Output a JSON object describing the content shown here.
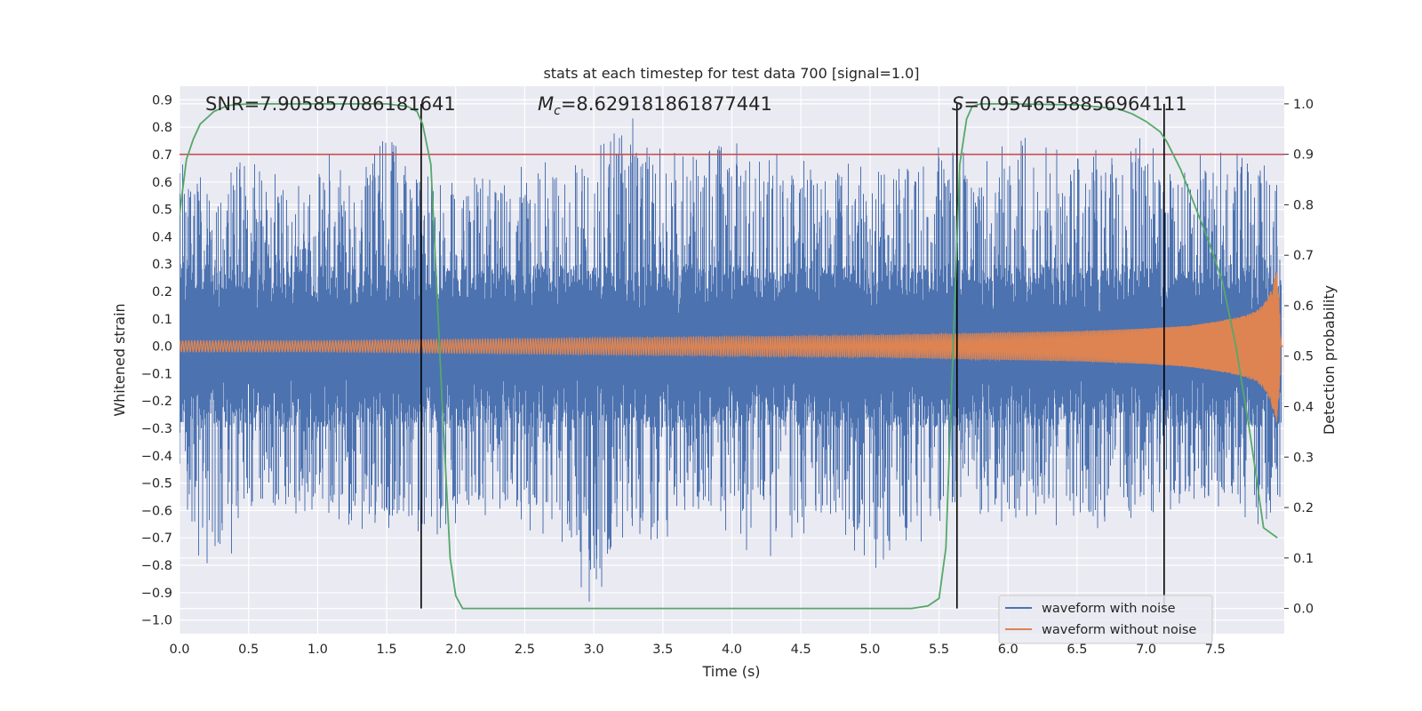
{
  "chart_data": {
    "type": "line",
    "title": "stats at each timestep for test data 700 [signal=1.0]",
    "xlabel": "Time (s)",
    "ylabel_left": "Whitened strain",
    "ylabel_right": "Detection probability",
    "xlim": [
      0.0,
      8.0
    ],
    "ylim_left": [
      -1.05,
      0.95
    ],
    "ylim_right": [
      -0.05,
      1.035
    ],
    "xticks": [
      0.0,
      0.5,
      1.0,
      1.5,
      2.0,
      2.5,
      3.0,
      3.5,
      4.0,
      4.5,
      5.0,
      5.5,
      6.0,
      6.5,
      7.0,
      7.5
    ],
    "xtick_labels": [
      "0.0",
      "0.5",
      "1.0",
      "1.5",
      "2.0",
      "2.5",
      "3.0",
      "3.5",
      "4.0",
      "4.5",
      "5.0",
      "5.5",
      "6.0",
      "6.5",
      "7.0",
      "7.5"
    ],
    "yticks_left": [
      -1.0,
      -0.9,
      -0.8,
      -0.7,
      -0.6,
      -0.5,
      -0.4,
      -0.3,
      -0.2,
      -0.1,
      0.0,
      0.1,
      0.2,
      0.3,
      0.4,
      0.5,
      0.6,
      0.7,
      0.8,
      0.9
    ],
    "ytick_labels_left": [
      "−1.0",
      "−0.9",
      "−0.8",
      "−0.7",
      "−0.6",
      "−0.5",
      "−0.4",
      "−0.3",
      "−0.2",
      "−0.1",
      "0.0",
      "0.1",
      "0.2",
      "0.3",
      "0.4",
      "0.5",
      "0.6",
      "0.7",
      "0.8",
      "0.9"
    ],
    "yticks_right": [
      0.0,
      0.1,
      0.2,
      0.3,
      0.4,
      0.5,
      0.6,
      0.7,
      0.8,
      0.9,
      1.0
    ],
    "ytick_labels_right": [
      "0.0",
      "0.1",
      "0.2",
      "0.3",
      "0.4",
      "0.5",
      "0.6",
      "0.7",
      "0.8",
      "0.9",
      "1.0"
    ],
    "annotations": {
      "snr": "SNR=7.905857086181641",
      "mc_symbol": "M",
      "mc_sub": "c",
      "mc_value": "=8.629181861877441",
      "s_symbol": "S",
      "s_value": "=0.9546558856964111"
    },
    "threshold": {
      "value": 0.9,
      "axis": "right",
      "color": "#c44e52"
    },
    "vertical_lines": [
      1.75,
      5.63,
      7.13
    ],
    "vertical_line_color": "#000000",
    "noise_series": {
      "name": "waveform with noise",
      "color": "#4c72b0",
      "envelope": {
        "x": [
          0.0,
          0.25,
          0.5,
          0.75,
          1.0,
          1.25,
          1.5,
          1.75,
          2.0,
          2.25,
          2.5,
          2.75,
          3.0,
          3.25,
          3.5,
          3.75,
          4.0,
          4.25,
          4.5,
          4.75,
          5.0,
          5.25,
          5.5,
          5.75,
          6.0,
          6.25,
          6.5,
          6.75,
          7.0,
          7.25,
          7.5,
          7.75,
          7.98
        ],
        "upper": [
          0.71,
          0.58,
          0.74,
          0.6,
          0.76,
          0.62,
          0.79,
          0.68,
          0.66,
          0.62,
          0.69,
          0.72,
          0.74,
          0.88,
          0.73,
          0.7,
          0.76,
          0.7,
          0.72,
          0.68,
          0.65,
          0.7,
          0.73,
          0.71,
          0.75,
          0.78,
          0.74,
          0.72,
          0.78,
          0.7,
          0.76,
          0.79,
          0.6
        ],
        "lower": [
          -0.6,
          -0.9,
          -0.64,
          -0.66,
          -0.62,
          -0.72,
          -0.68,
          -0.73,
          -0.66,
          -0.62,
          -0.68,
          -0.7,
          -1.0,
          -0.7,
          -0.76,
          -0.66,
          -0.68,
          -0.84,
          -0.72,
          -0.67,
          -0.82,
          -0.76,
          -0.68,
          -0.6,
          -0.7,
          -0.64,
          -0.72,
          -0.65,
          -0.62,
          -0.66,
          -0.6,
          -0.68,
          -0.6
        ]
      }
    },
    "clean_series": {
      "name": "waveform without noise",
      "color": "#dd8452",
      "envelope": {
        "x": [
          0.0,
          1.0,
          2.0,
          3.0,
          4.0,
          5.0,
          6.0,
          6.5,
          7.0,
          7.3,
          7.5,
          7.7,
          7.8,
          7.86,
          7.9,
          7.93,
          7.95,
          7.98
        ],
        "amplitude": [
          0.02,
          0.02,
          0.025,
          0.03,
          0.035,
          0.04,
          0.05,
          0.055,
          0.065,
          0.075,
          0.09,
          0.11,
          0.13,
          0.16,
          0.2,
          0.25,
          0.29,
          0.0
        ]
      }
    },
    "probability_series": {
      "color": "#55a868",
      "x": [
        0.0,
        0.05,
        0.1,
        0.15,
        0.25,
        0.35,
        0.5,
        0.75,
        1.0,
        1.25,
        1.5,
        1.65,
        1.72,
        1.76,
        1.82,
        1.9,
        1.96,
        2.0,
        2.05,
        2.5,
        3.0,
        3.5,
        4.0,
        4.5,
        5.0,
        5.3,
        5.42,
        5.5,
        5.55,
        5.6,
        5.65,
        5.7,
        5.74,
        5.8,
        6.0,
        6.5,
        6.8,
        6.9,
        7.0,
        7.1,
        7.15,
        7.25,
        7.35,
        7.45,
        7.55,
        7.65,
        7.75,
        7.85,
        7.95
      ],
      "y": [
        0.78,
        0.89,
        0.93,
        0.96,
        0.985,
        0.997,
        1.0,
        1.0,
        1.0,
        1.0,
        1.0,
        0.995,
        0.985,
        0.96,
        0.88,
        0.42,
        0.1,
        0.025,
        0.0,
        0.0,
        0.0,
        0.0,
        0.0,
        0.0,
        0.0,
        0.0,
        0.005,
        0.02,
        0.12,
        0.5,
        0.88,
        0.97,
        0.995,
        1.0,
        1.0,
        0.998,
        0.99,
        0.98,
        0.965,
        0.945,
        0.925,
        0.87,
        0.8,
        0.73,
        0.65,
        0.52,
        0.35,
        0.16,
        0.14
      ]
    },
    "legend": {
      "placement": "lower right",
      "entries": [
        {
          "label": "waveform with noise",
          "color": "#4c72b0"
        },
        {
          "label": "waveform without noise",
          "color": "#dd8452"
        }
      ]
    },
    "grid": true,
    "background": "#eaeaf2"
  }
}
